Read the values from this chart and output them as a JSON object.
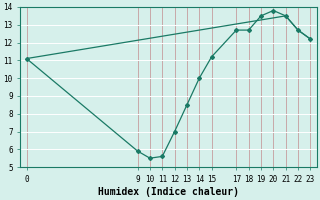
{
  "x_indices": [
    0,
    1,
    2,
    3,
    4,
    5,
    6,
    7,
    8,
    9,
    10,
    11,
    12,
    13,
    14
  ],
  "x_labels": [
    "0",
    "",
    "",
    "",
    "",
    "",
    "",
    "",
    "",
    "9",
    "10",
    "11",
    "12",
    "13",
    "14",
    "15",
    "",
    "17",
    "18",
    "19",
    "20",
    "21",
    "22",
    "23"
  ],
  "xtick_pos": [
    0,
    9,
    10,
    11,
    12,
    13,
    14,
    15,
    17,
    18,
    19,
    20,
    21,
    22,
    23
  ],
  "xtick_labels": [
    "0",
    "9",
    "10",
    "11",
    "12",
    "13",
    "14",
    "15",
    "17",
    "18",
    "19",
    "20",
    "21",
    "22",
    "23"
  ],
  "line1_x": [
    0,
    9,
    10,
    11,
    12,
    13,
    14,
    15,
    17,
    18,
    19,
    20,
    21,
    22,
    23
  ],
  "line1_y": [
    11.1,
    5.9,
    5.5,
    5.6,
    7.0,
    8.5,
    10.0,
    11.2,
    12.7,
    12.7,
    13.5,
    13.8,
    13.5,
    12.7,
    12.2
  ],
  "line2_x": [
    0,
    21,
    22,
    23
  ],
  "line2_y": [
    11.1,
    13.5,
    12.7,
    12.2
  ],
  "line_color": "#1a7a65",
  "bg_color": "#d6f0eb",
  "grid_color": "#c8e8e0",
  "vgrid_color": "#d4aaaa",
  "xlabel": "Humidex (Indice chaleur)",
  "xlim": [
    -0.5,
    23.5
  ],
  "ylim": [
    5,
    14
  ],
  "yticks": [
    5,
    6,
    7,
    8,
    9,
    10,
    11,
    12,
    13,
    14
  ],
  "xlabel_fontsize": 7,
  "tick_fontsize": 5.5
}
